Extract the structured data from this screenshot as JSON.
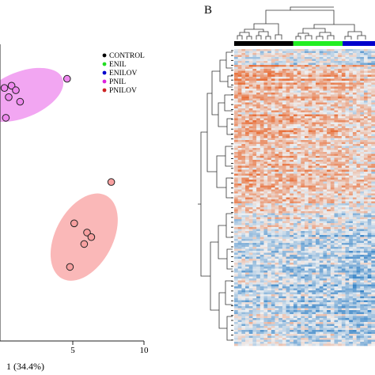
{
  "panel_b_letter": "B",
  "chart_data": [
    {
      "type": "scatter",
      "xlabel": "1 (34.4%)",
      "x_ticks": [
        5,
        10
      ],
      "xlim": [
        -2.6,
        10.5
      ],
      "ylim": [
        -6.2,
        6.5
      ],
      "legend_position": "top-right",
      "series": [
        {
          "name": "CONTROL",
          "color": "#000000",
          "points": []
        },
        {
          "name": "ENIL",
          "color": "#22dd22",
          "points": []
        },
        {
          "name": "ENILOV",
          "color": "#0000cc",
          "points": []
        },
        {
          "name": "PNIL",
          "color": "#dd22dd",
          "fill": "#ee88ee",
          "ellipse": {
            "cx": 1.4,
            "cy": 3.9,
            "rx": 3.1,
            "ry": 1.0,
            "angle_deg": -22
          },
          "points": [
            [
              4.6,
              4.6
            ],
            [
              -2.4,
              4.4
            ],
            [
              0.7,
              4.3
            ],
            [
              0.2,
              4.2
            ],
            [
              1.0,
              4.1
            ],
            [
              0.5,
              3.8
            ],
            [
              1.3,
              3.6
            ],
            [
              0.3,
              2.9
            ]
          ]
        },
        {
          "name": "PNILOV",
          "color": "#cc2222",
          "fill": "#f8a0a0",
          "ellipse": {
            "cx": 5.8,
            "cy": -2.3,
            "rx": 3.3,
            "ry": 1.25,
            "angle_deg": -62
          },
          "points": [
            [
              7.7,
              0.1
            ],
            [
              5.1,
              -1.7
            ],
            [
              6.0,
              -2.1
            ],
            [
              6.3,
              -2.3
            ],
            [
              5.8,
              -2.6
            ],
            [
              4.8,
              -3.6
            ]
          ]
        }
      ]
    },
    {
      "type": "heatmap",
      "rows": 150,
      "cols": 38,
      "group_bar": [
        {
          "group": "CONTROL",
          "color": "#000000",
          "fraction": 0.42
        },
        {
          "group": "ENIL",
          "color": "#22ee22",
          "fraction": 0.35
        },
        {
          "group": "ENILOV",
          "color": "#0000cc",
          "fraction": 0.23
        }
      ],
      "color_scale": {
        "low": "#3a86c8",
        "mid": "#eef0f2",
        "high": "#e8703a"
      }
    }
  ]
}
